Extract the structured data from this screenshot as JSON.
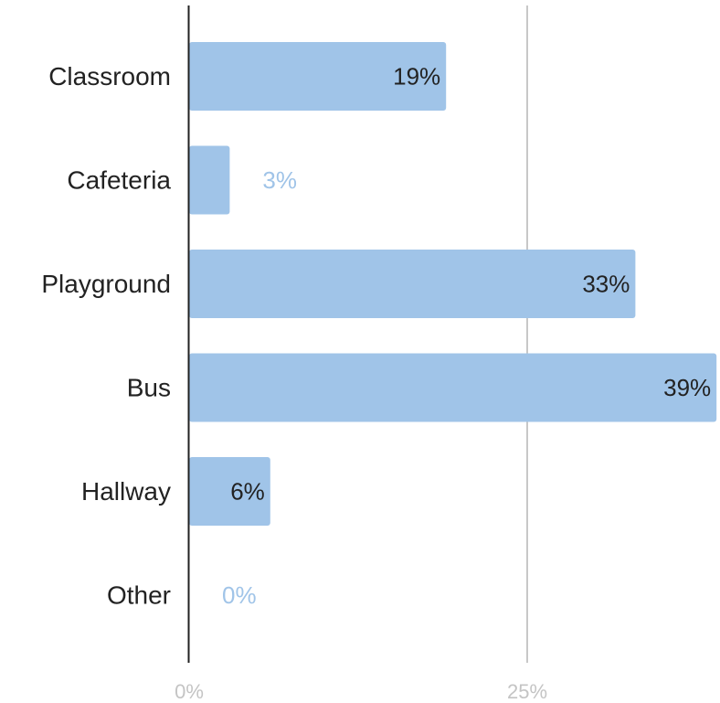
{
  "chart_data": {
    "type": "bar",
    "orientation": "horizontal",
    "categories": [
      "Classroom",
      "Cafeteria",
      "Playground",
      "Bus",
      "Hallway",
      "Other"
    ],
    "values": [
      19,
      3,
      33,
      39,
      6,
      0
    ],
    "data_labels": [
      "19%",
      "3%",
      "33%",
      "39%",
      "6%",
      "0%"
    ],
    "title": "",
    "xlabel": "",
    "ylabel": "",
    "xlim": [
      0,
      39
    ],
    "x_ticks": [
      {
        "value": 0,
        "label": "0%"
      },
      {
        "value": 25,
        "label": "25%"
      }
    ],
    "grid": true,
    "legend": "none",
    "colors": {
      "bar": "#a0c4e8",
      "label_inside": "#222222",
      "label_outside": "#a0c4e8",
      "axis": "#222222",
      "gridline": "#c8c8c8",
      "tick_label": "#c4c4c4"
    }
  }
}
